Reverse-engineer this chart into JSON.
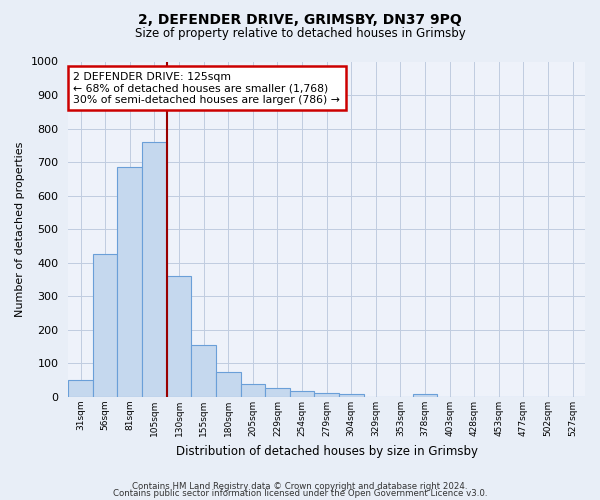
{
  "title": "2, DEFENDER DRIVE, GRIMSBY, DN37 9PQ",
  "subtitle": "Size of property relative to detached houses in Grimsby",
  "xlabel": "Distribution of detached houses by size in Grimsby",
  "ylabel": "Number of detached properties",
  "categories": [
    "31sqm",
    "56sqm",
    "81sqm",
    "105sqm",
    "130sqm",
    "155sqm",
    "180sqm",
    "205sqm",
    "229sqm",
    "254sqm",
    "279sqm",
    "304sqm",
    "329sqm",
    "353sqm",
    "378sqm",
    "403sqm",
    "428sqm",
    "453sqm",
    "477sqm",
    "502sqm",
    "527sqm"
  ],
  "values": [
    50,
    425,
    685,
    760,
    360,
    155,
    75,
    40,
    27,
    18,
    11,
    8,
    0,
    0,
    8,
    0,
    0,
    0,
    0,
    0,
    0
  ],
  "bar_color": "#c5d8ee",
  "bar_edge_color": "#6a9fd8",
  "property_line_color": "#990000",
  "annotation_line1": "2 DEFENDER DRIVE: 125sqm",
  "annotation_line2": "← 68% of detached houses are smaller (1,768)",
  "annotation_line3": "30% of semi-detached houses are larger (786) →",
  "annotation_box_color": "white",
  "annotation_box_edge_color": "#cc0000",
  "ylim": [
    0,
    1000
  ],
  "yticks": [
    0,
    100,
    200,
    300,
    400,
    500,
    600,
    700,
    800,
    900,
    1000
  ],
  "footer_line1": "Contains HM Land Registry data © Crown copyright and database right 2024.",
  "footer_line2": "Contains public sector information licensed under the Open Government Licence v3.0.",
  "background_color": "#e8eef7",
  "plot_background_color": "#eef2fa",
  "grid_color": "#c0cce0"
}
